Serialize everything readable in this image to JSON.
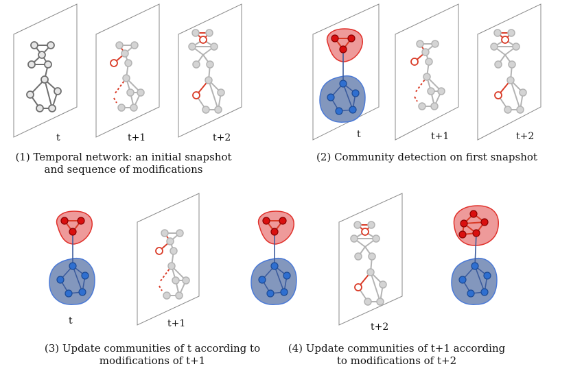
{
  "time_labels": {
    "t": "t",
    "t1": "t+1",
    "t2": "t+2"
  },
  "captions": {
    "panel1": {
      "line1": "(1) Temporal network: an initial snapshot",
      "line2": "and sequence of modifications"
    },
    "panel2": {
      "line1": "(2) Community detection on first snapshot"
    },
    "panel3": {
      "line1": "(3) Update communities of t according to",
      "line2": "modifications of t+1"
    },
    "panel4": {
      "line1": "(4) Update communities of t+1 according",
      "line2": "to modifications of t+2"
    }
  },
  "colors": {
    "community_red": "#d90f0f",
    "community_blue": "#2f6fd0",
    "modification_edge": "#d93a26",
    "inactive_node": "#d4d4d4"
  }
}
